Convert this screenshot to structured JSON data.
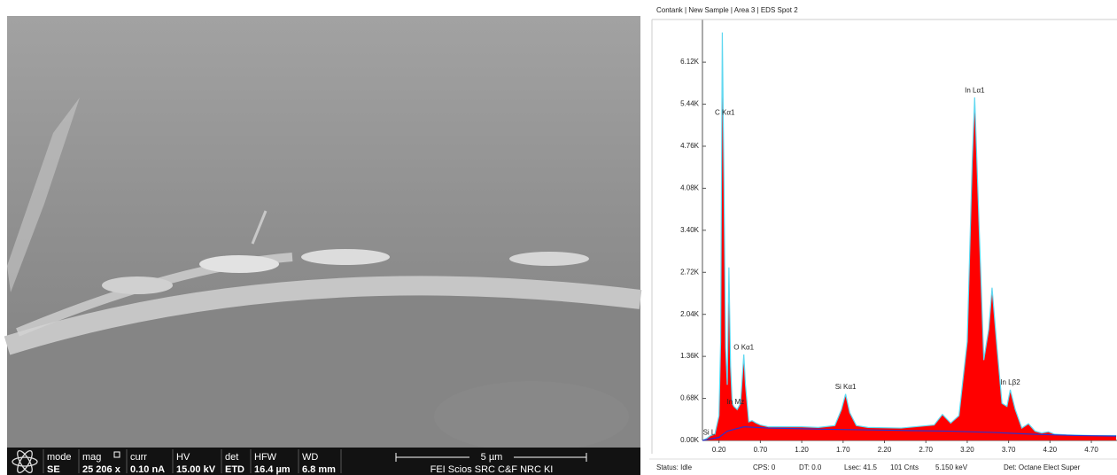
{
  "chart_data": {
    "type": "area",
    "title": "Contank | New Sample | Area 3 | EDS Spot 2",
    "x": [
      0.0,
      0.05,
      0.1,
      0.15,
      0.2,
      0.22,
      0.24,
      0.26,
      0.28,
      0.3,
      0.32,
      0.34,
      0.36,
      0.38,
      0.42,
      0.46,
      0.5,
      0.52,
      0.56,
      0.6,
      0.65,
      0.7,
      0.8,
      1.0,
      1.2,
      1.4,
      1.6,
      1.68,
      1.73,
      1.78,
      1.86,
      2.0,
      2.4,
      2.8,
      2.9,
      3.0,
      3.1,
      3.2,
      3.26,
      3.29,
      3.33,
      3.4,
      3.46,
      3.5,
      3.56,
      3.62,
      3.68,
      3.72,
      3.78,
      3.86,
      3.94,
      4.02,
      4.1,
      4.18,
      4.26,
      4.4,
      4.7,
      5.0
    ],
    "series": [
      {
        "color": "#ff0000",
        "outline": "#5fd7f0",
        "values": [
          0.0,
          0.03,
          0.08,
          0.1,
          0.4,
          1.6,
          6.6,
          4.2,
          1.5,
          0.9,
          2.8,
          1.2,
          0.6,
          0.55,
          0.5,
          0.6,
          1.39,
          0.9,
          0.3,
          0.32,
          0.28,
          0.25,
          0.22,
          0.22,
          0.22,
          0.21,
          0.24,
          0.5,
          0.75,
          0.45,
          0.24,
          0.21,
          0.2,
          0.25,
          0.42,
          0.28,
          0.4,
          1.6,
          4.5,
          5.55,
          4.0,
          1.3,
          1.8,
          2.47,
          1.5,
          0.6,
          0.55,
          0.82,
          0.5,
          0.2,
          0.27,
          0.15,
          0.12,
          0.14,
          0.1,
          0.09,
          0.08,
          0.08
        ]
      }
    ],
    "background": {
      "color": "#3030c8",
      "x": [
        0,
        0.2,
        0.3,
        0.5,
        0.8,
        1.5,
        2.5,
        3.0,
        3.5,
        4.0,
        4.5,
        5.0
      ],
      "values": [
        0,
        0.05,
        0.15,
        0.22,
        0.2,
        0.18,
        0.16,
        0.15,
        0.13,
        0.1,
        0.08,
        0.07
      ]
    },
    "annotations": [
      {
        "text": "Si L",
        "x": 0.08,
        "y": 0.12
      },
      {
        "text": "C  Kα1",
        "x": 0.27,
        "y": 5.3
      },
      {
        "text": "In Mz",
        "x": 0.4,
        "y": 0.62
      },
      {
        "text": "O  Kα1",
        "x": 0.5,
        "y": 1.5
      },
      {
        "text": "Si Kα1",
        "x": 1.73,
        "y": 0.86
      },
      {
        "text": "In Lα1",
        "x": 3.29,
        "y": 5.66
      },
      {
        "text": "In Lβ2",
        "x": 3.72,
        "y": 0.93
      }
    ],
    "xlim": [
      0,
      5.01
    ],
    "ylim": [
      0,
      6.81
    ],
    "xticks": [
      {
        "value": 0.2,
        "label": "0.20"
      },
      {
        "value": 0.7,
        "label": "0.70"
      },
      {
        "value": 1.2,
        "label": "1.20"
      },
      {
        "value": 1.7,
        "label": "1.70"
      },
      {
        "value": 2.2,
        "label": "2.20"
      },
      {
        "value": 2.7,
        "label": "2.70"
      },
      {
        "value": 3.2,
        "label": "3.20"
      },
      {
        "value": 3.7,
        "label": "3.70"
      },
      {
        "value": 4.2,
        "label": "4.20"
      },
      {
        "value": 4.7,
        "label": "4.70"
      }
    ],
    "yticks": [
      {
        "value": 0,
        "label": "0.00K"
      },
      {
        "value": 0.68,
        "label": "0.68K"
      },
      {
        "value": 1.36,
        "label": "1.36K"
      },
      {
        "value": 2.04,
        "label": "2.04K"
      },
      {
        "value": 2.72,
        "label": "2.72K"
      },
      {
        "value": 3.4,
        "label": "3.40K"
      },
      {
        "value": 4.08,
        "label": "4.08K"
      },
      {
        "value": 4.76,
        "label": "4.76K"
      },
      {
        "value": 5.44,
        "label": "5.44K"
      },
      {
        "value": 6.12,
        "label": "6.12K"
      }
    ],
    "grid": false
  },
  "status_bar": [
    "Status: Idle",
    "CPS: 0",
    "DT: 0.0",
    "Lsec: 41.5",
    "101 Cnts",
    "5.150 keV",
    "Det: Octane Elect Super"
  ],
  "sem_databar": {
    "fields": [
      {
        "label": "mode",
        "value": "SE"
      },
      {
        "label": "mag",
        "value": "25 206 x"
      },
      {
        "label": "curr",
        "value": "0.10 nA"
      },
      {
        "label": "HV",
        "value": "15.00 kV"
      },
      {
        "label": "det",
        "value": "ETD"
      },
      {
        "label": "HFW",
        "value": "16.4 µm"
      },
      {
        "label": "WD",
        "value": "6.8 mm"
      }
    ],
    "scale_bar": "5 µm",
    "footer": "FEI Scios SRC C&F NRC KI"
  }
}
